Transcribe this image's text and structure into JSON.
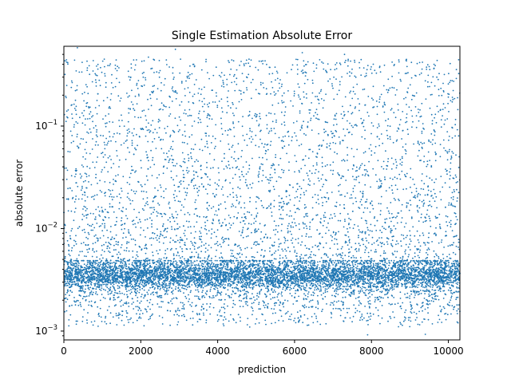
{
  "chart_data": {
    "type": "scatter",
    "title": "Single Estimation Absolute Error",
    "xlabel": "prediction",
    "ylabel": "absolute error",
    "xlim": [
      0,
      10300
    ],
    "ylim": [
      0.00082,
      0.6
    ],
    "yscale": "log",
    "x_ticks": [
      0,
      2000,
      4000,
      6000,
      8000,
      10000
    ],
    "x_tick_labels": [
      "0",
      "2000",
      "4000",
      "6000",
      "8000",
      "10000"
    ],
    "y_ticks": [
      0.001,
      0.01,
      0.1
    ],
    "y_tick_labels": [
      {
        "base": "10",
        "exp": "−3"
      },
      {
        "base": "10",
        "exp": "−2"
      },
      {
        "base": "10",
        "exp": "−1"
      }
    ],
    "grid": false,
    "marker_color": "#1f77b4",
    "num_points": 10300,
    "distribution": {
      "band_center": 0.0035,
      "band_low": 0.0025,
      "band_high": 0.0045,
      "lower_tail_min": 0.00095,
      "upper_tail_max": 0.6,
      "band_fraction": 0.6
    },
    "series": [
      {
        "name": "",
        "points": [
          [
            350,
            0.58
          ],
          [
            2900,
            0.56
          ],
          [
            1050,
            0.45
          ],
          [
            2200,
            0.47
          ],
          [
            6200,
            0.52
          ],
          [
            7300,
            0.5
          ],
          [
            8900,
            0.44
          ],
          [
            4800,
            0.41
          ],
          [
            9500,
            0.38
          ],
          [
            9700,
            0.3
          ],
          [
            5400,
            0.27
          ],
          [
            1900,
            0.26
          ],
          [
            3500,
            0.12
          ],
          [
            6800,
            0.11
          ],
          [
            8200,
            0.1
          ],
          [
            4200,
            0.09
          ],
          [
            500,
            0.05
          ],
          [
            7600,
            0.03
          ],
          [
            2600,
            0.02
          ],
          [
            9200,
            0.015
          ],
          [
            7900,
            0.00092
          ],
          [
            9400,
            0.00093
          ],
          [
            350,
            0.00125
          ],
          [
            800,
            0.00125
          ]
        ]
      }
    ]
  }
}
